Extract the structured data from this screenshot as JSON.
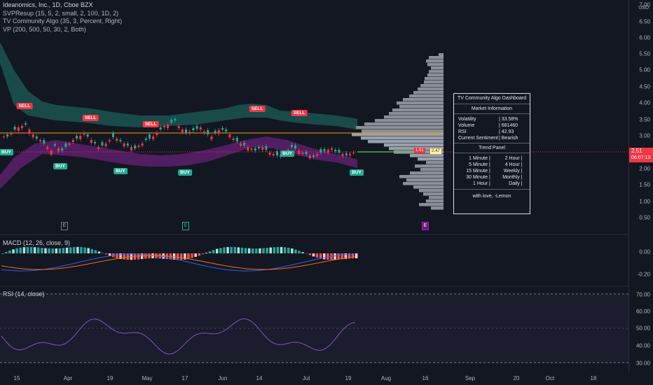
{
  "legend": {
    "title": "Ideanomics, Inc., 1D, Cboe BZX",
    "line1": "SVPResup (15, 5, 2, small, 2, 100, 1D, 2)",
    "line2": "TV Community Algo (35, 3, Percent, Right)",
    "line3": "VP (200, 500, 50, 30, 2, Both)"
  },
  "macd_label": "MACD (12, 26, close, 9)",
  "rsi_label": "RSI (14, close)",
  "axis": {
    "currency": "USD",
    "main_ticks": [
      "7.00",
      "6.50",
      "6.00",
      "5.50",
      "5.00",
      "4.50",
      "4.00",
      "3.50",
      "3.00",
      "2.50",
      "2.00",
      "1.50",
      "1.00",
      "0.50"
    ],
    "macd_ticks": [
      "0.00",
      "-0.20"
    ],
    "rsi_ticks": [
      "70.00",
      "60.00",
      "50.00",
      "40.00",
      "30.00"
    ],
    "last_price": "2.51",
    "countdown": "06:07:13"
  },
  "x_ticks": [
    "15",
    "Apr",
    "19",
    "May",
    "17",
    "Jun",
    "14",
    "Jul",
    "19",
    "Aug",
    "16",
    "Sep",
    "20",
    "Oct",
    "18"
  ],
  "signals": {
    "sell": "SELL",
    "buy": "BUY"
  },
  "dashboard": {
    "title": "TV Community Algo Dashboard",
    "market_header": "Market Information",
    "volatility_label": "Volatility",
    "volatility_value": "| 33.58%",
    "volume_label": "Volume",
    "volume_value": "| 681460",
    "rsi_label": "RSI",
    "rsi_value": "| 42.93",
    "sentiment_label": "Current Sentiment",
    "sentiment_value": "| Bearish",
    "trend_header": "Trend Panel",
    "tf1a": "1 Minute",
    "tf1b": "2 Hour",
    "tf2a": "5 Minute",
    "tf2b": "4 Hour",
    "tf3a": "15 Minute",
    "tf3b": "Weekly",
    "tf4a": "30 Minute",
    "tf4b": "Monthly",
    "tf5a": "1 Hour",
    "tf5b": "Daily",
    "footer": "with love, -Lemon"
  },
  "markers": {
    "vp_left": "1.51",
    "vp_right": "2.47",
    "earnings": "E"
  },
  "colors": {
    "background": "#131722",
    "bull": "#22ab94",
    "bear": "#f23645",
    "macd": "#2962ff",
    "signal": "#ff6d00",
    "rsi": "#7e57c2"
  }
}
